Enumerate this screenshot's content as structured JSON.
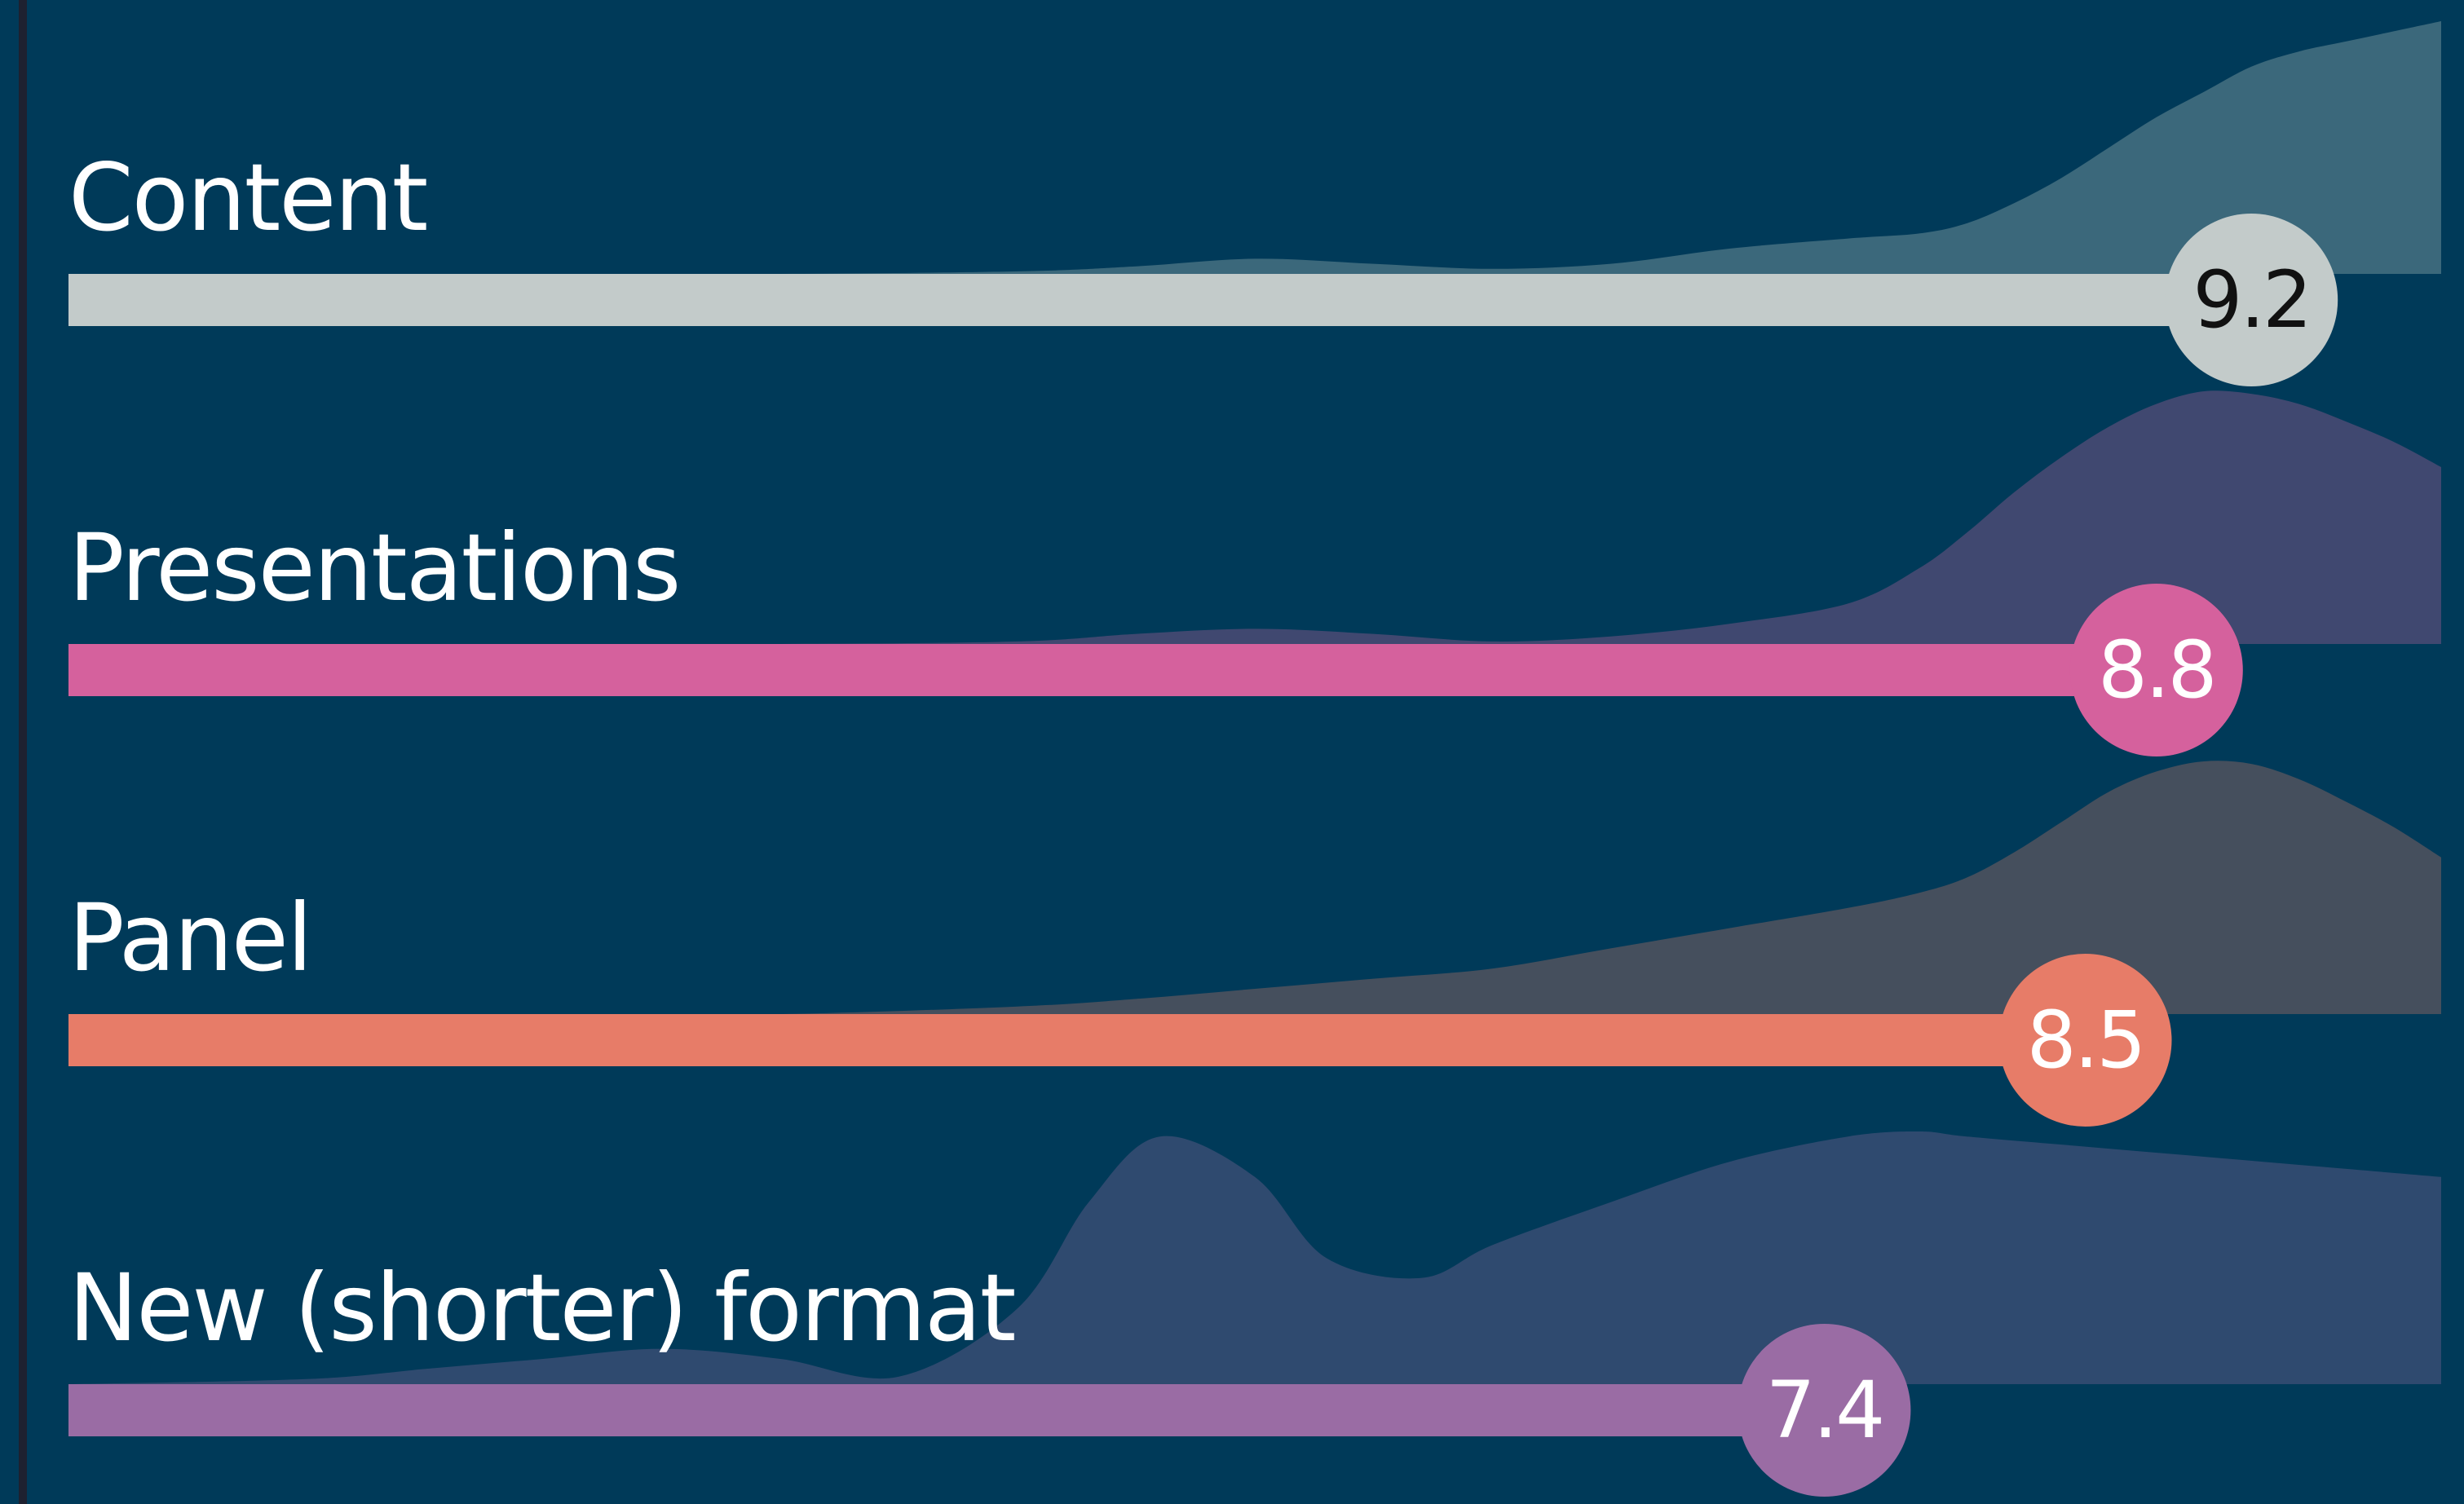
{
  "chart_data": {
    "type": "bar",
    "orientation": "horizontal",
    "background": "#003a59",
    "axis_color": "#1e2130",
    "xlim": [
      0,
      10
    ],
    "density_x_range": [
      0,
      10
    ],
    "categories": [
      "Content",
      "Presentations",
      "Panel",
      "New (shorter) format"
    ],
    "series": [
      {
        "values": [
          9.2,
          8.8,
          8.5,
          7.4
        ]
      }
    ],
    "data_labels": [
      "9.2",
      "8.8",
      "8.5",
      "7.4"
    ],
    "colors": {
      "bars": [
        "#c3cbca",
        "#d5619d",
        "#e77c68",
        "#9a6ca4"
      ],
      "densities": [
        "#3b687b",
        "#404870",
        "#454f5d",
        "#2f4a6f"
      ],
      "data_label_text": [
        "#111111",
        "#ffffff",
        "#ffffff",
        "#ffffff"
      ]
    },
    "distributions": [
      {
        "category": "Content",
        "x": [
          0,
          1,
          2,
          3,
          4,
          4.5,
          5,
          5.5,
          6,
          6.5,
          7,
          7.5,
          7.8,
          8,
          8.2,
          8.4,
          8.6,
          8.8,
          9,
          9.2,
          9.4,
          9.6,
          9.8,
          10
        ],
        "density": [
          0,
          0,
          0,
          0,
          0.01,
          0.03,
          0.06,
          0.04,
          0.02,
          0.04,
          0.1,
          0.14,
          0.16,
          0.2,
          0.28,
          0.38,
          0.5,
          0.62,
          0.72,
          0.82,
          0.88,
          0.92,
          0.96,
          1.0
        ]
      },
      {
        "category": "Presentations",
        "x": [
          0,
          1,
          2,
          3,
          4,
          4.5,
          5,
          5.5,
          6,
          6.5,
          7,
          7.5,
          7.8,
          8,
          8.2,
          8.4,
          8.6,
          8.8,
          9,
          9.2,
          9.4,
          9.6,
          9.8,
          10
        ],
        "density": [
          0,
          0,
          0,
          0,
          0.01,
          0.04,
          0.06,
          0.04,
          0.01,
          0.03,
          0.08,
          0.16,
          0.3,
          0.44,
          0.6,
          0.74,
          0.86,
          0.95,
          1.0,
          0.99,
          0.95,
          0.88,
          0.8,
          0.7
        ]
      },
      {
        "category": "Panel",
        "x": [
          0,
          1,
          2,
          3,
          4,
          4.5,
          5,
          5.5,
          6,
          6.5,
          7,
          7.5,
          7.8,
          8,
          8.2,
          8.4,
          8.6,
          8.8,
          9,
          9.2,
          9.4,
          9.6,
          9.8,
          10
        ],
        "density": [
          0,
          0,
          0,
          0,
          0.03,
          0.06,
          0.1,
          0.14,
          0.18,
          0.26,
          0.34,
          0.42,
          0.48,
          0.54,
          0.64,
          0.76,
          0.88,
          0.96,
          1.0,
          0.99,
          0.93,
          0.84,
          0.74,
          0.62
        ]
      },
      {
        "category": "New (shorter) format",
        "x": [
          0,
          1,
          1.5,
          2,
          2.5,
          3,
          3.5,
          4,
          4.3,
          4.6,
          5,
          5.3,
          5.7,
          6,
          6.5,
          7,
          7.5,
          7.8,
          8,
          8.5,
          9,
          9.5,
          10
        ],
        "density": [
          0,
          0.02,
          0.06,
          0.1,
          0.14,
          0.1,
          0.03,
          0.3,
          0.72,
          0.98,
          0.82,
          0.5,
          0.42,
          0.55,
          0.72,
          0.88,
          0.98,
          1.0,
          0.98,
          0.94,
          0.9,
          0.86,
          0.82
        ]
      }
    ]
  }
}
